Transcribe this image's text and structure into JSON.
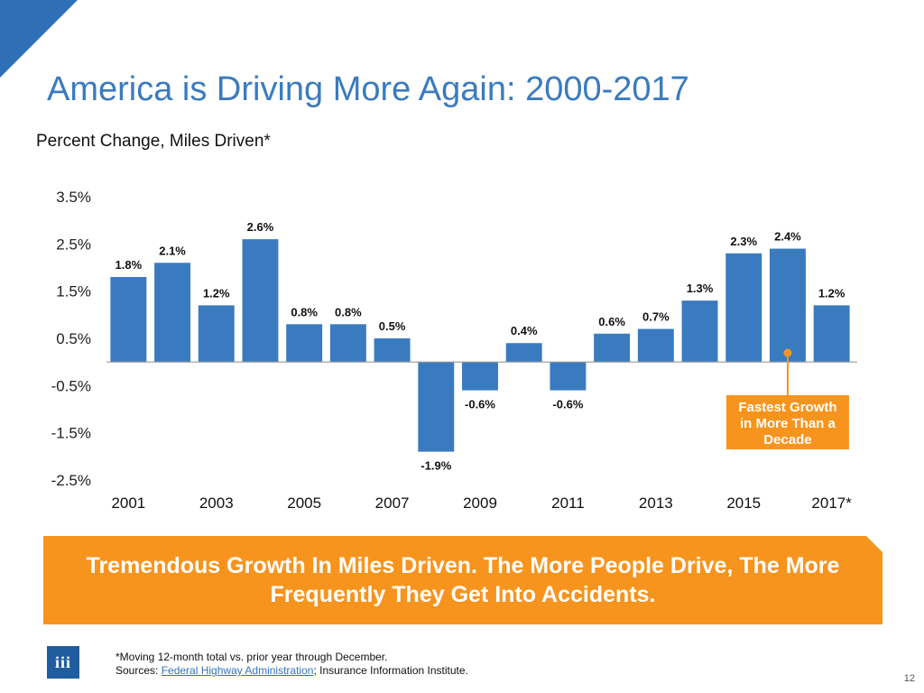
{
  "slide": {
    "title": "America is Driving More Again: 2000-2017",
    "subtitle": "Percent Change, Miles Driven*",
    "banner": "Tremendous Growth In Miles Driven. The More People Drive, The More Frequently They Get Into Accidents.",
    "footnote_line1": "*Moving 12-month total vs. prior year through December.",
    "footnote_sources_prefix": "Sources: ",
    "footnote_sources_link": "Federal Highway Administration",
    "footnote_sources_suffix": "; Insurance Information Institute.",
    "logo_text": "iii",
    "page_number": "12"
  },
  "colors": {
    "bar": "#3a7bbf",
    "accent": "#f7941d",
    "title": "#3a7bbf",
    "corner": "#2f6fb5"
  },
  "chart_data": {
    "type": "bar",
    "title": "America is Driving More Again: 2000-2017",
    "ylabel": "Percent Change, Miles Driven*",
    "xlabel": "",
    "categories": [
      "2001",
      "2002",
      "2003",
      "2004",
      "2005",
      "2006",
      "2007",
      "2008",
      "2009",
      "2010",
      "2011",
      "2012",
      "2013",
      "2014",
      "2015",
      "2016",
      "2017*"
    ],
    "values": [
      1.8,
      2.1,
      1.2,
      2.6,
      0.8,
      0.8,
      0.5,
      -1.9,
      -0.6,
      0.4,
      -0.6,
      0.6,
      0.7,
      1.3,
      2.3,
      2.4,
      1.2
    ],
    "data_labels": [
      "1.8%",
      "2.1%",
      "1.2%",
      "2.6%",
      "0.8%",
      "0.8%",
      "0.5%",
      "-1.9%",
      "-0.6%",
      "0.4%",
      "-0.6%",
      "0.6%",
      "0.7%",
      "1.3%",
      "2.3%",
      "2.4%",
      "1.2%"
    ],
    "x_tick_labels": [
      "2001",
      "2003",
      "2005",
      "2007",
      "2009",
      "2011",
      "2013",
      "2015",
      "2017*"
    ],
    "y_tick_values": [
      3.5,
      2.5,
      1.5,
      0.5,
      -0.5,
      -1.5,
      -2.5
    ],
    "y_tick_labels": [
      "3.5%",
      "2.5%",
      "1.5%",
      "0.5%",
      "-0.5%",
      "-1.5%",
      "-2.5%"
    ],
    "ylim": [
      -2.5,
      3.5
    ],
    "grid": false,
    "annotation": {
      "text_lines": [
        "Fastest Growth",
        "in More Than a",
        "Decade"
      ],
      "target_category": "2016"
    }
  }
}
